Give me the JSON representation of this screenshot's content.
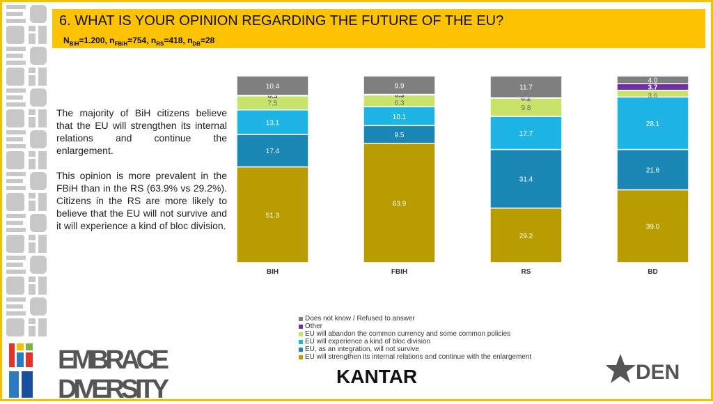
{
  "header": {
    "title": "6. WHAT IS YOUR OPINION REGARDING THE FUTURE OF THE EU?",
    "sample": [
      {
        "n": "N",
        "sub": "BiH",
        "val": "=1.200, "
      },
      {
        "n": "n",
        "sub": "FBiH",
        "val": "=754, "
      },
      {
        "n": "n",
        "sub": "RS",
        "val": "=418, "
      },
      {
        "n": "n",
        "sub": "DB",
        "val": "=28"
      }
    ]
  },
  "text": {
    "p1": "The majority of BiH citizens believe that the EU will strengthen its internal relations and continue the enlargement.",
    "p2": "This opinion is more prevalent in the FBiH than in the RS (63.9% vs 29.2%). Citizens in the RS are more likely to believe that the EU will not survive and it will experience a kind of bloc division."
  },
  "chart_data": {
    "type": "bar",
    "stacked": true,
    "orientation": "vertical",
    "ylim": [
      0,
      100
    ],
    "grid": false,
    "legend_placement": "bottom",
    "categories": [
      "BIH",
      "FBIH",
      "RS",
      "BD"
    ],
    "series": [
      {
        "name": "EU will strengthen its internal relations and continue with the enlargement",
        "color": "#b89c00",
        "values": [
          51.3,
          63.9,
          29.2,
          39.0
        ]
      },
      {
        "name": "EU, as an integration, will not survive",
        "color": "#1a87b5",
        "values": [
          17.4,
          9.5,
          31.4,
          21.6
        ]
      },
      {
        "name": "EU will experience a kind of bloc division",
        "color": "#1eb4e6",
        "values": [
          13.1,
          10.1,
          17.7,
          28.1
        ]
      },
      {
        "name": "EU will abandon the common currency and some common policies",
        "color": "#c8e36a",
        "values": [
          7.5,
          6.3,
          9.8,
          3.6
        ]
      },
      {
        "name": "Other",
        "color": "#7030a0",
        "values": [
          0.3,
          0.3,
          0.2,
          3.7
        ]
      },
      {
        "name": "Does not know / Refused to answer",
        "color": "#7f7f7f",
        "values": [
          10.4,
          9.9,
          11.7,
          4.0
        ]
      }
    ]
  },
  "logos": {
    "left": "EMBRACE DIVERSITY",
    "center": "KANTAR",
    "right": "DEN"
  }
}
